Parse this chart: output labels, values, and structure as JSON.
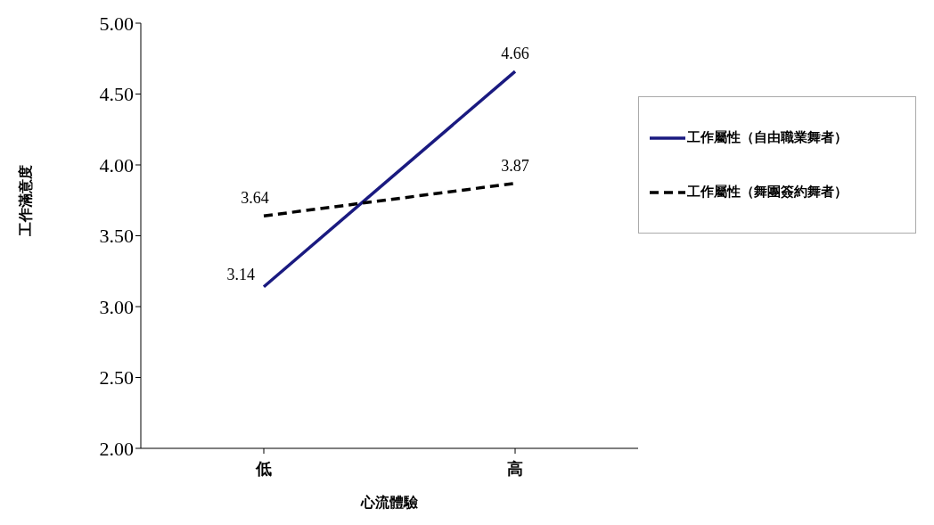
{
  "chart_data": {
    "type": "line",
    "xlabel": "心流體驗",
    "ylabel": "工作滿意度",
    "categories": [
      "低",
      "高"
    ],
    "series": [
      {
        "name": "工作屬性（自由職業舞者）",
        "color": "#1a1a80",
        "values": [
          3.14,
          4.66
        ],
        "line_style": "solid"
      },
      {
        "name": "工作屬性（舞團簽約舞者）",
        "color": "#000000",
        "values": [
          3.64,
          3.87
        ],
        "line_style": "dashed"
      }
    ],
    "ylim": [
      2,
      5
    ],
    "yticks": [
      {
        "value": 2,
        "label": "2.00"
      },
      {
        "value": 2.5,
        "label": "2.50"
      },
      {
        "value": 3,
        "label": "3.00"
      },
      {
        "value": 3.5,
        "label": "3.50"
      },
      {
        "value": 4,
        "label": "4.00"
      },
      {
        "value": 4.5,
        "label": "4.50"
      },
      {
        "value": 5,
        "label": "5.00"
      }
    ],
    "data_labels": true,
    "grid": false,
    "legend": "right",
    "marker": "none"
  }
}
